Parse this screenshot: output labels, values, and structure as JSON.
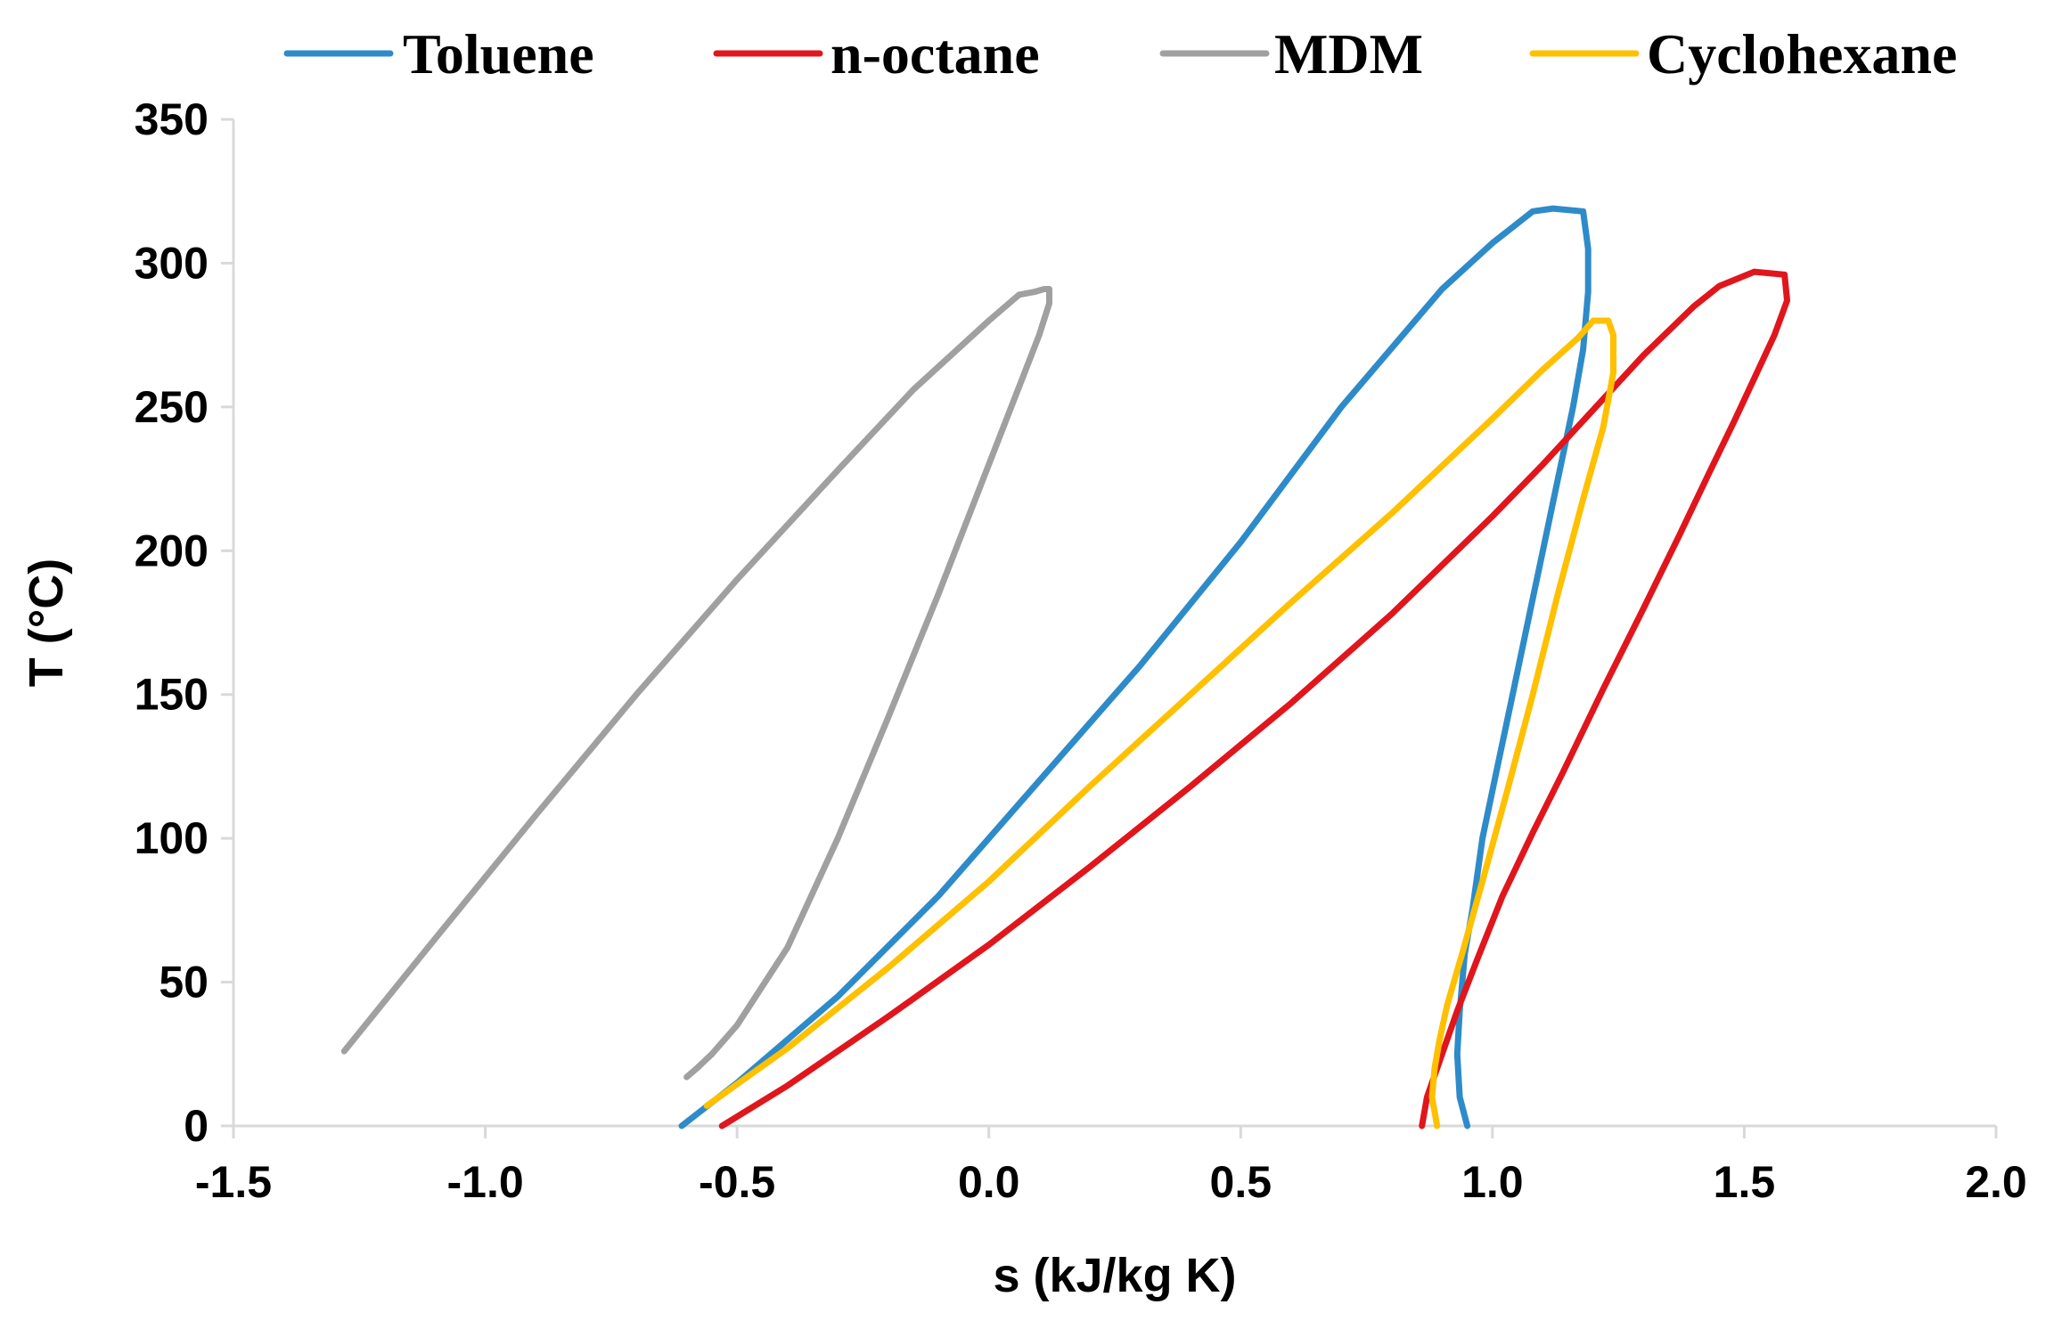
{
  "chart_data": {
    "type": "line",
    "title": "",
    "xlabel": "s (kJ/kg K)",
    "ylabel": "T (°C)",
    "xlim": [
      -1.5,
      2.0
    ],
    "ylim": [
      0,
      350
    ],
    "xticks": [
      -1.5,
      -1.0,
      -0.5,
      0.0,
      0.5,
      1.0,
      1.5,
      2.0
    ],
    "xtick_labels": [
      "-1.5",
      "-1.0",
      "-0.5",
      "0.0",
      "0.5",
      "1.0",
      "1.5",
      "2.0"
    ],
    "yticks": [
      0,
      50,
      100,
      150,
      200,
      250,
      300,
      350
    ],
    "ytick_labels": [
      "0",
      "50",
      "100",
      "150",
      "200",
      "250",
      "300",
      "350"
    ],
    "grid": false,
    "legend_position": "top",
    "series": [
      {
        "name": "Toluene",
        "color": "#2E8BC9",
        "x": [
          -0.61,
          -0.5,
          -0.3,
          -0.1,
          0.1,
          0.3,
          0.5,
          0.7,
          0.9,
          1.0,
          1.08,
          1.12,
          1.18,
          1.19,
          1.19,
          1.18,
          1.16,
          1.13,
          1.1,
          1.07,
          1.04,
          1.01,
          0.98,
          0.96,
          0.945,
          0.935,
          0.93,
          0.935,
          0.95
        ],
        "y": [
          0,
          15,
          45,
          80,
          120,
          160,
          203,
          250,
          291,
          307,
          318,
          319,
          318,
          305,
          290,
          270,
          250,
          225,
          200,
          175,
          150,
          125,
          100,
          75,
          60,
          40,
          25,
          10,
          0
        ]
      },
      {
        "name": "n-octane",
        "color": "#E0161C",
        "x": [
          -0.53,
          -0.4,
          -0.2,
          0.0,
          0.2,
          0.4,
          0.6,
          0.8,
          1.0,
          1.1,
          1.2,
          1.3,
          1.4,
          1.45,
          1.52,
          1.58,
          1.585,
          1.56,
          1.52,
          1.48,
          1.43,
          1.37,
          1.3,
          1.22,
          1.14,
          1.08,
          1.02,
          0.97,
          0.93,
          0.9,
          0.87,
          0.86
        ],
        "y": [
          0,
          14,
          38,
          63,
          90,
          118,
          147,
          178,
          212,
          230,
          249,
          268,
          285,
          292,
          297,
          296,
          287,
          275,
          260,
          245,
          227,
          205,
          180,
          152,
          123,
          102,
          80,
          58,
          40,
          25,
          10,
          0
        ]
      },
      {
        "name": "MDM",
        "color": "#A0A0A0",
        "x": [
          -1.28,
          -1.1,
          -0.9,
          -0.7,
          -0.5,
          -0.3,
          -0.15,
          0.0,
          0.06,
          0.09,
          0.11,
          0.12,
          0.12,
          0.1,
          0.06,
          0.0,
          -0.1,
          -0.2,
          -0.3,
          -0.4,
          -0.5,
          -0.55,
          -0.58,
          -0.6
        ],
        "y": [
          26,
          65,
          108,
          150,
          190,
          228,
          256,
          280,
          289,
          290,
          291,
          291,
          286,
          275,
          257,
          230,
          185,
          142,
          100,
          62,
          35,
          25,
          20,
          17
        ]
      },
      {
        "name": "Cyclohexane",
        "color": "#FFC000",
        "x": [
          -0.56,
          -0.4,
          -0.2,
          0.0,
          0.2,
          0.4,
          0.6,
          0.8,
          1.0,
          1.1,
          1.17,
          1.2,
          1.23,
          1.24,
          1.24,
          1.22,
          1.18,
          1.13,
          1.08,
          1.03,
          0.98,
          0.94,
          0.91,
          0.895,
          0.885,
          0.88,
          0.885,
          0.89
        ],
        "y": [
          7,
          27,
          55,
          85,
          118,
          150,
          182,
          213,
          246,
          263,
          274,
          280,
          280,
          275,
          262,
          243,
          218,
          185,
          150,
          117,
          85,
          60,
          42,
          30,
          20,
          10,
          5,
          0
        ]
      }
    ]
  }
}
